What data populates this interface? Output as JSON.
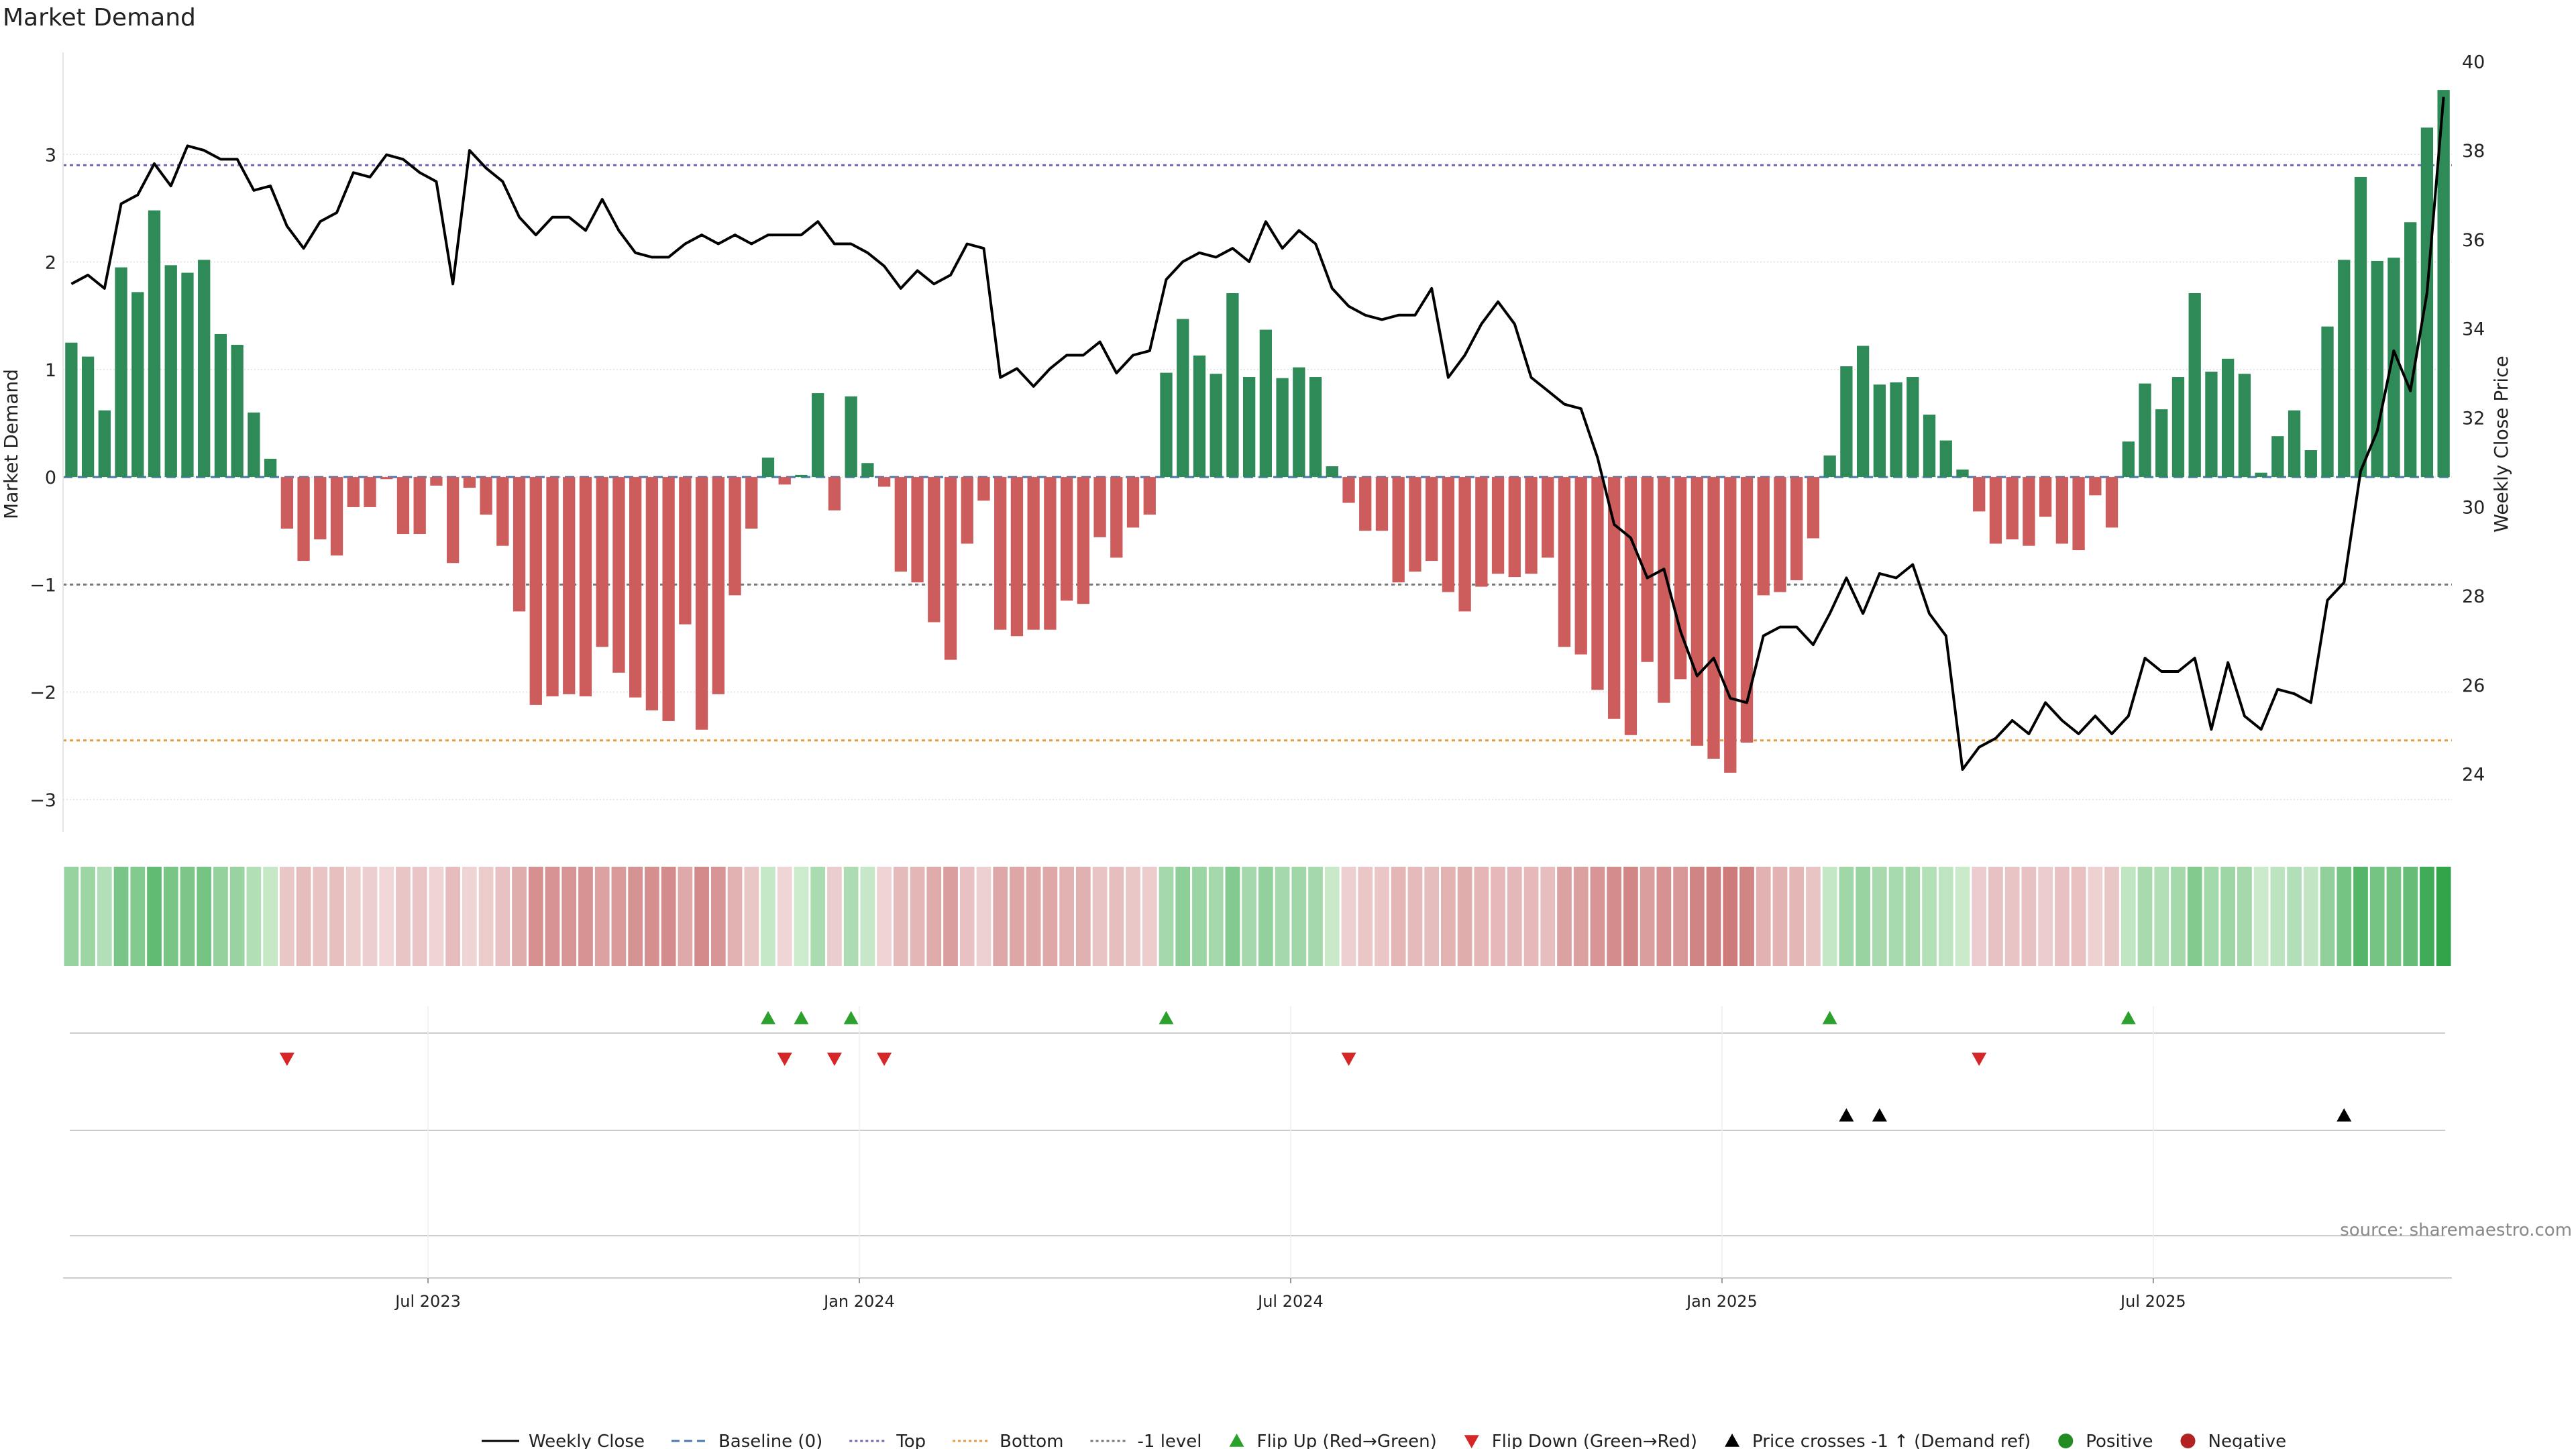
{
  "title": "Market Demand",
  "source": "source: sharemaestro.com",
  "colors": {
    "positive": "#2e8b57",
    "negative": "#cd5c5c",
    "price": "#000000",
    "top": "#6b63b5",
    "bottom": "#e69a3c",
    "minus1": "#777777",
    "baseline": "#4a77b4",
    "flip_up": "#2ca02c",
    "flip_down": "#d62728",
    "cross": "#000000",
    "grid": "#dddddd"
  },
  "chart_data": {
    "type": "bar",
    "title": "Market Demand",
    "ylabel": "Market Demand",
    "y2label": "Weekly Close Price",
    "ylim": [
      -3.3,
      3.95
    ],
    "y2lim": [
      22.7,
      40.2
    ],
    "yticks": [
      -3,
      -2,
      -1,
      0,
      1,
      2,
      3
    ],
    "ytick_labels": [
      "−3",
      "−2",
      "−1",
      "0",
      "1",
      "2",
      "3"
    ],
    "y2ticks": [
      24,
      26,
      28,
      30,
      32,
      34,
      36,
      38,
      40
    ],
    "xticks": [
      {
        "label": "Jul 2023",
        "week": 22
      },
      {
        "label": "Jan 2024",
        "week": 48
      },
      {
        "label": "Jul 2024",
        "week": 74
      },
      {
        "label": "Jan 2025",
        "week": 100
      },
      {
        "label": "Jul 2025",
        "week": 126
      }
    ],
    "reference_lines": {
      "top": 2.9,
      "bottom": -2.45,
      "minus1": -1.0,
      "baseline": 0
    },
    "demand": [
      1.25,
      1.12,
      0.62,
      1.95,
      1.72,
      2.48,
      1.97,
      1.9,
      2.02,
      1.33,
      1.23,
      0.6,
      0.17,
      -0.48,
      -0.78,
      -0.58,
      -0.73,
      -0.28,
      -0.28,
      -0.02,
      -0.53,
      -0.53,
      -0.08,
      -0.8,
      -0.1,
      -0.35,
      -0.64,
      -1.25,
      -2.12,
      -2.04,
      -2.02,
      -2.04,
      -1.58,
      -1.82,
      -2.05,
      -2.17,
      -2.27,
      -1.37,
      -2.35,
      -2.02,
      -1.1,
      -0.48,
      0.18,
      -0.07,
      0.02,
      0.78,
      -0.31,
      0.75,
      0.13,
      -0.09,
      -0.88,
      -0.98,
      -1.35,
      -1.7,
      -0.62,
      -0.22,
      -1.42,
      -1.48,
      -1.42,
      -1.42,
      -1.15,
      -1.18,
      -0.56,
      -0.75,
      -0.47,
      -0.35,
      0.97,
      1.47,
      1.13,
      0.96,
      1.71,
      0.93,
      1.37,
      0.92,
      1.02,
      0.93,
      0.1,
      -0.24,
      -0.5,
      -0.5,
      -0.98,
      -0.88,
      -0.78,
      -1.07,
      -1.25,
      -1.02,
      -0.9,
      -0.93,
      -0.9,
      -0.75,
      -1.58,
      -1.65,
      -1.98,
      -2.25,
      -2.4,
      -1.72,
      -2.1,
      -1.88,
      -2.5,
      -2.62,
      -2.75,
      -2.47,
      -1.1,
      -1.07,
      -0.96,
      -0.57,
      0.2,
      1.03,
      1.22,
      0.86,
      0.88,
      0.93,
      0.58,
      0.34,
      0.07,
      -0.32,
      -0.62,
      -0.58,
      -0.64,
      -0.37,
      -0.62,
      -0.68,
      -0.17,
      -0.47,
      0.33,
      0.87,
      0.63,
      0.93,
      1.71,
      0.98,
      1.1,
      0.96,
      0.04,
      0.38,
      0.62,
      0.25,
      1.4,
      2.02,
      2.79,
      2.01,
      2.04,
      2.37,
      3.25,
      3.6
    ],
    "weekly_close": [
      35.0,
      35.2,
      34.9,
      36.8,
      37.0,
      37.7,
      37.2,
      38.1,
      38.0,
      37.8,
      37.8,
      37.1,
      37.2,
      36.3,
      35.8,
      36.4,
      36.6,
      37.5,
      37.4,
      37.9,
      37.8,
      37.5,
      37.3,
      35.0,
      38.0,
      37.6,
      37.3,
      36.5,
      36.1,
      36.5,
      36.5,
      36.2,
      36.9,
      36.2,
      35.7,
      35.6,
      35.6,
      35.9,
      36.1,
      35.9,
      36.1,
      35.9,
      36.1,
      36.1,
      36.1,
      36.4,
      35.9,
      35.9,
      35.7,
      35.4,
      34.9,
      35.3,
      35.0,
      35.2,
      35.9,
      35.8,
      32.9,
      33.1,
      32.7,
      33.1,
      33.4,
      33.4,
      33.7,
      33.0,
      33.4,
      33.5,
      35.1,
      35.5,
      35.7,
      35.6,
      35.8,
      35.5,
      36.4,
      35.8,
      36.2,
      35.9,
      34.9,
      34.5,
      34.3,
      34.2,
      34.3,
      34.3,
      34.9,
      32.9,
      33.4,
      34.1,
      34.6,
      34.1,
      32.9,
      32.6,
      32.3,
      32.2,
      31.1,
      29.6,
      29.3,
      28.4,
      28.6,
      27.2,
      26.2,
      26.6,
      25.7,
      25.6,
      27.1,
      27.3,
      27.3,
      26.9,
      27.6,
      28.4,
      27.6,
      28.5,
      28.4,
      28.7,
      27.6,
      27.1,
      24.1,
      24.6,
      24.8,
      25.2,
      24.9,
      25.6,
      25.2,
      24.9,
      25.3,
      24.9,
      25.3,
      26.6,
      26.3,
      26.3,
      26.6,
      25.0,
      26.5,
      25.3,
      25.0,
      25.9,
      25.8,
      25.6,
      27.9,
      28.3,
      30.8,
      31.7,
      33.5,
      32.6,
      34.8,
      39.2
    ],
    "heat_strip": "per-week colour intensity proportional to demand (green positive, red negative)",
    "flip_up_weeks": [
      42,
      44,
      47,
      66,
      106,
      124
    ],
    "flip_down_weeks": [
      13,
      43,
      46,
      49,
      77,
      115
    ],
    "price_cross_weeks": [
      107,
      109,
      137
    ],
    "legend": [
      {
        "label": "Weekly Close",
        "kind": "line-solid"
      },
      {
        "label": "Baseline (0)",
        "kind": "line-dash"
      },
      {
        "label": "Top",
        "kind": "line-dot-top"
      },
      {
        "label": "Bottom",
        "kind": "line-dot-bottom"
      },
      {
        "label": "-1 level",
        "kind": "line-dot-minus1"
      },
      {
        "label": "Flip Up (Red→Green)",
        "kind": "tri-up-green"
      },
      {
        "label": "Flip Down (Green→Red)",
        "kind": "tri-down-red"
      },
      {
        "label": "Price crosses -1 ↑ (Demand ref)",
        "kind": "tri-up-black"
      },
      {
        "label": "Positive",
        "kind": "dot-green"
      },
      {
        "label": "Negative",
        "kind": "dot-red"
      }
    ]
  }
}
